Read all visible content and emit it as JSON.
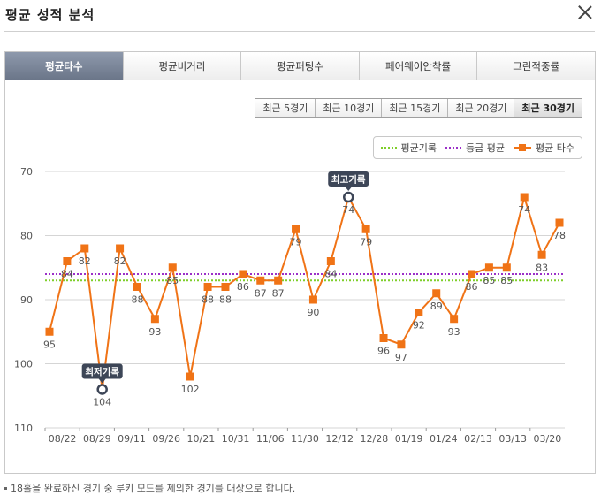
{
  "header": {
    "title": "평균 성적 분석"
  },
  "tabs": [
    {
      "label": "평균타수",
      "active": true
    },
    {
      "label": "평균비거리",
      "active": false
    },
    {
      "label": "평균퍼팅수",
      "active": false
    },
    {
      "label": "페어웨이안착률",
      "active": false
    },
    {
      "label": "그린적중률",
      "active": false
    }
  ],
  "ranges": [
    {
      "label": "최근 5경기",
      "active": false
    },
    {
      "label": "최근 10경기",
      "active": false
    },
    {
      "label": "최근 15경기",
      "active": false
    },
    {
      "label": "최근 20경기",
      "active": false
    },
    {
      "label": "최근 30경기",
      "active": true
    }
  ],
  "legend": {
    "personal_best": "평균기록",
    "grade_avg": "등급 평균",
    "avg_score": "평균 타수"
  },
  "footnote": "18홀을 완료하신 경기 중 루키 모드를 제외한 경기를 대상으로 합니다.",
  "colors": {
    "score": "#f07316",
    "personal": "#7fcf2a",
    "grade": "#9b30c8",
    "callout": "#3d4657"
  },
  "chart_data": {
    "type": "line",
    "y_inverted": true,
    "ylim": [
      70,
      110
    ],
    "yticks": [
      70,
      80,
      90,
      100,
      110
    ],
    "xticks": [
      "08/22",
      "08/29",
      "09/11",
      "09/26",
      "10/21",
      "10/31",
      "11/06",
      "11/30",
      "12/12",
      "12/28",
      "01/19",
      "01/24",
      "02/13",
      "03/13",
      "03/20"
    ],
    "series": [
      {
        "name": "평균 타수",
        "values": [
          95,
          84,
          82,
          104,
          82,
          88,
          93,
          85,
          102,
          88,
          88,
          86,
          87,
          87,
          79,
          90,
          84,
          74,
          79,
          96,
          97,
          92,
          89,
          93,
          86,
          85,
          85,
          74,
          83,
          78
        ]
      }
    ],
    "reference_lines": [
      {
        "name": "평균기록",
        "value": 87
      },
      {
        "name": "등급 평균",
        "value": 86
      }
    ],
    "annotations": [
      {
        "label": "최고기록",
        "point_index": 17
      },
      {
        "label": "최저기록",
        "point_index": 3
      }
    ]
  }
}
